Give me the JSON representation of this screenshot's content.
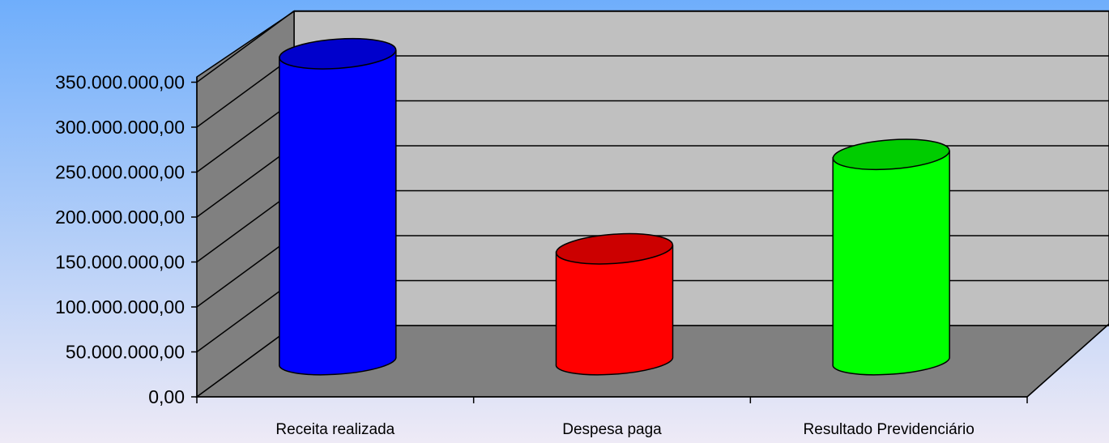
{
  "chart_data": {
    "type": "bar",
    "bar_shape": "cylinder-3d",
    "categories": [
      "Receita realizada",
      "Despesa paga",
      "Resultado Previdenciário"
    ],
    "values": [
      342000000,
      125000000,
      230000000
    ],
    "colors": [
      "#0000FF",
      "#FF0000",
      "#00FF00"
    ],
    "top_colors": [
      "#0000CC",
      "#CC0000",
      "#00CC00"
    ],
    "yticks": [
      "0,00",
      "50.000.000,00",
      "100.000.000,00",
      "150.000.000,00",
      "200.000.000,00",
      "250.000.000,00",
      "300.000.000,00",
      "350.000.000,00"
    ],
    "ylim": [
      0,
      350000000
    ],
    "grid": true,
    "legend": "none",
    "title": "",
    "xlabel": "",
    "ylabel": ""
  },
  "colors": {
    "background_top": "#6FAEFB",
    "background_bottom": "#EEEAF6",
    "back_wall": "#C0C0C0",
    "side_wall": "#808080",
    "floor": "#808080"
  }
}
